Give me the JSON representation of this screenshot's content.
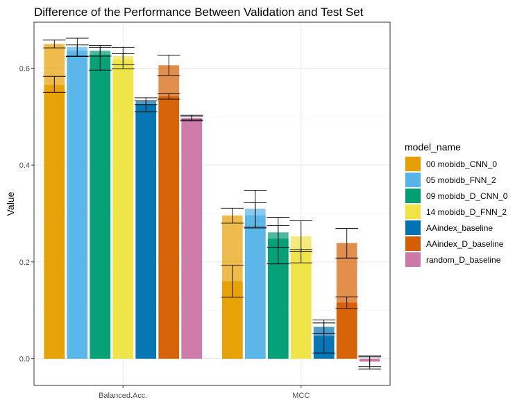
{
  "chart_data": {
    "type": "bar",
    "title": "Difference of the Performance Between Validation and Test Set",
    "xlabel": "",
    "ylabel": "Value",
    "categories": [
      "Balanced.Acc.",
      "MCC"
    ],
    "ylim": [
      -0.055,
      0.695
    ],
    "y_ticks": [
      "0.0",
      "0.2",
      "0.4",
      "0.6"
    ],
    "y_tick_values": [
      0.0,
      0.2,
      0.4,
      0.6
    ],
    "grid": true,
    "legend_position": "right",
    "legend_title": "model_name",
    "series": [
      {
        "name": "00 mobidb_CNN_0",
        "color": "#E69F00",
        "values": [
          0.65,
          0.296
        ],
        "test_values": [
          0.565,
          0.16
        ],
        "err_top": [
          [
            0.658,
            0.642
          ],
          [
            0.311,
            0.28
          ]
        ],
        "err_bottom": [
          [
            0.583,
            0.55
          ],
          [
            0.193,
            0.127
          ]
        ]
      },
      {
        "name": "05 mobidb_FNN_2",
        "color": "#56B4E9",
        "values": [
          0.644,
          0.31
        ],
        "test_values": [
          0.636,
          0.296
        ],
        "err_top": [
          [
            0.662,
            0.625
          ],
          [
            0.348,
            0.272
          ]
        ],
        "err_bottom": [
          [
            0.648,
            0.624
          ],
          [
            0.322,
            0.27
          ]
        ]
      },
      {
        "name": "09 mobidb_D_CNN_0",
        "color": "#009E73",
        "values": [
          0.636,
          0.261
        ],
        "test_values": [
          0.628,
          0.248
        ],
        "err_top": [
          [
            0.647,
            0.625
          ],
          [
            0.292,
            0.23
          ]
        ],
        "err_bottom": [
          [
            0.643,
            0.596
          ],
          [
            0.275,
            0.196
          ]
        ]
      },
      {
        "name": "14 mobidb_D_FNN_2",
        "color": "#F0E442",
        "values": [
          0.625,
          0.253
        ],
        "test_values": [
          0.618,
          0.224
        ],
        "err_top": [
          [
            0.643,
            0.607
          ],
          [
            0.285,
            0.222
          ]
        ],
        "err_bottom": [
          [
            0.63,
            0.599
          ],
          [
            0.226,
            0.198
          ]
        ]
      },
      {
        "name": "AAindex_baseline",
        "color": "#0072B2",
        "values": [
          0.532,
          0.066
        ],
        "test_values": [
          0.526,
          0.047
        ],
        "err_top": [
          [
            0.539,
            0.525
          ],
          [
            0.08,
            0.052
          ]
        ],
        "err_bottom": [
          [
            0.533,
            0.51
          ],
          [
            0.074,
            0.012
          ]
        ]
      },
      {
        "name": "AAindex_D_baseline",
        "color": "#D55E00",
        "values": [
          0.606,
          0.239
        ],
        "test_values": [
          0.542,
          0.116
        ],
        "err_top": [
          [
            0.627,
            0.585
          ],
          [
            0.269,
            0.208
          ]
        ],
        "err_bottom": [
          [
            0.548,
            0.536
          ],
          [
            0.128,
            0.104
          ]
        ]
      },
      {
        "name": "random_D_baseline",
        "color": "#CC79A7",
        "values": [
          0.498,
          -0.006
        ],
        "test_values": [
          0.496,
          -0.005
        ],
        "err_top": [
          [
            0.503,
            0.493
          ],
          [
            0.004,
            -0.016
          ]
        ],
        "err_bottom": [
          [
            0.501,
            0.491
          ],
          [
            0.006,
            -0.021
          ]
        ]
      }
    ]
  }
}
